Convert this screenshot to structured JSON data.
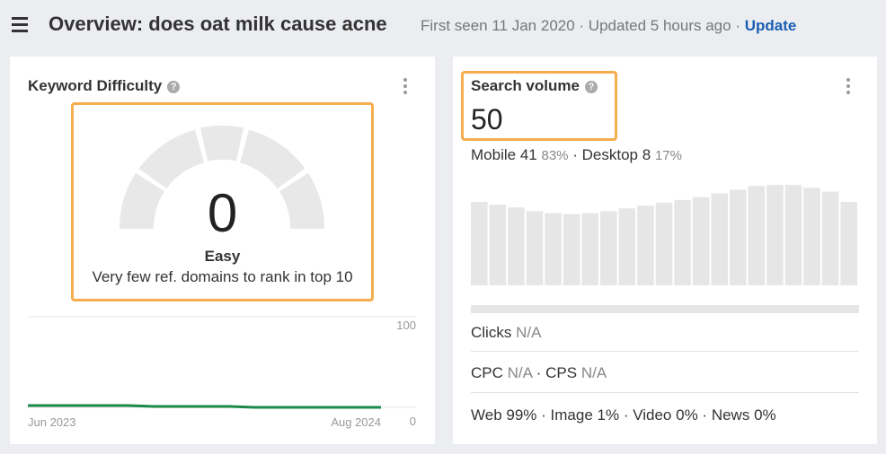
{
  "header": {
    "title": "Overview: does oat milk cause acne",
    "first_seen": "First seen 11 Jan 2020",
    "updated": "Updated 5 hours ago",
    "update": "Update"
  },
  "keyword_difficulty": {
    "title": "Keyword Difficulty",
    "value": "0",
    "label": "Easy",
    "description": "Very few ref. domains to rank in top 10",
    "trend": {
      "type": "line",
      "x_start": "Jun 2023",
      "x_end": "Aug 2024",
      "ylim": [
        0,
        100
      ],
      "yticks": [
        0,
        100
      ],
      "color": "#1a8a4a",
      "values": [
        2,
        2,
        2,
        2,
        2,
        1,
        1,
        1,
        1,
        0,
        0,
        0,
        0,
        0,
        0
      ]
    }
  },
  "search_volume": {
    "title": "Search volume",
    "value": "50",
    "mobile": {
      "label": "Mobile",
      "value": "41",
      "share": "83%"
    },
    "desktop": {
      "label": "Desktop",
      "value": "8",
      "share": "17%"
    },
    "history": {
      "type": "bar",
      "ylim": [
        0,
        110
      ],
      "color": "#e6e6e6",
      "values": [
        89,
        86,
        83,
        79,
        77,
        76,
        77,
        79,
        82,
        85,
        88,
        91,
        94,
        98,
        102,
        106,
        107,
        107,
        104,
        100,
        89
      ]
    },
    "clicks": {
      "label": "Clicks",
      "value": "N/A"
    },
    "cpc": {
      "label": "CPC",
      "value": "N/A"
    },
    "cps": {
      "label": "CPS",
      "value": "N/A"
    },
    "traffic": [
      {
        "label": "Web",
        "value": "99%"
      },
      {
        "label": "Image",
        "value": "1%"
      },
      {
        "label": "Video",
        "value": "0%"
      },
      {
        "label": "News",
        "value": "0%"
      }
    ]
  }
}
